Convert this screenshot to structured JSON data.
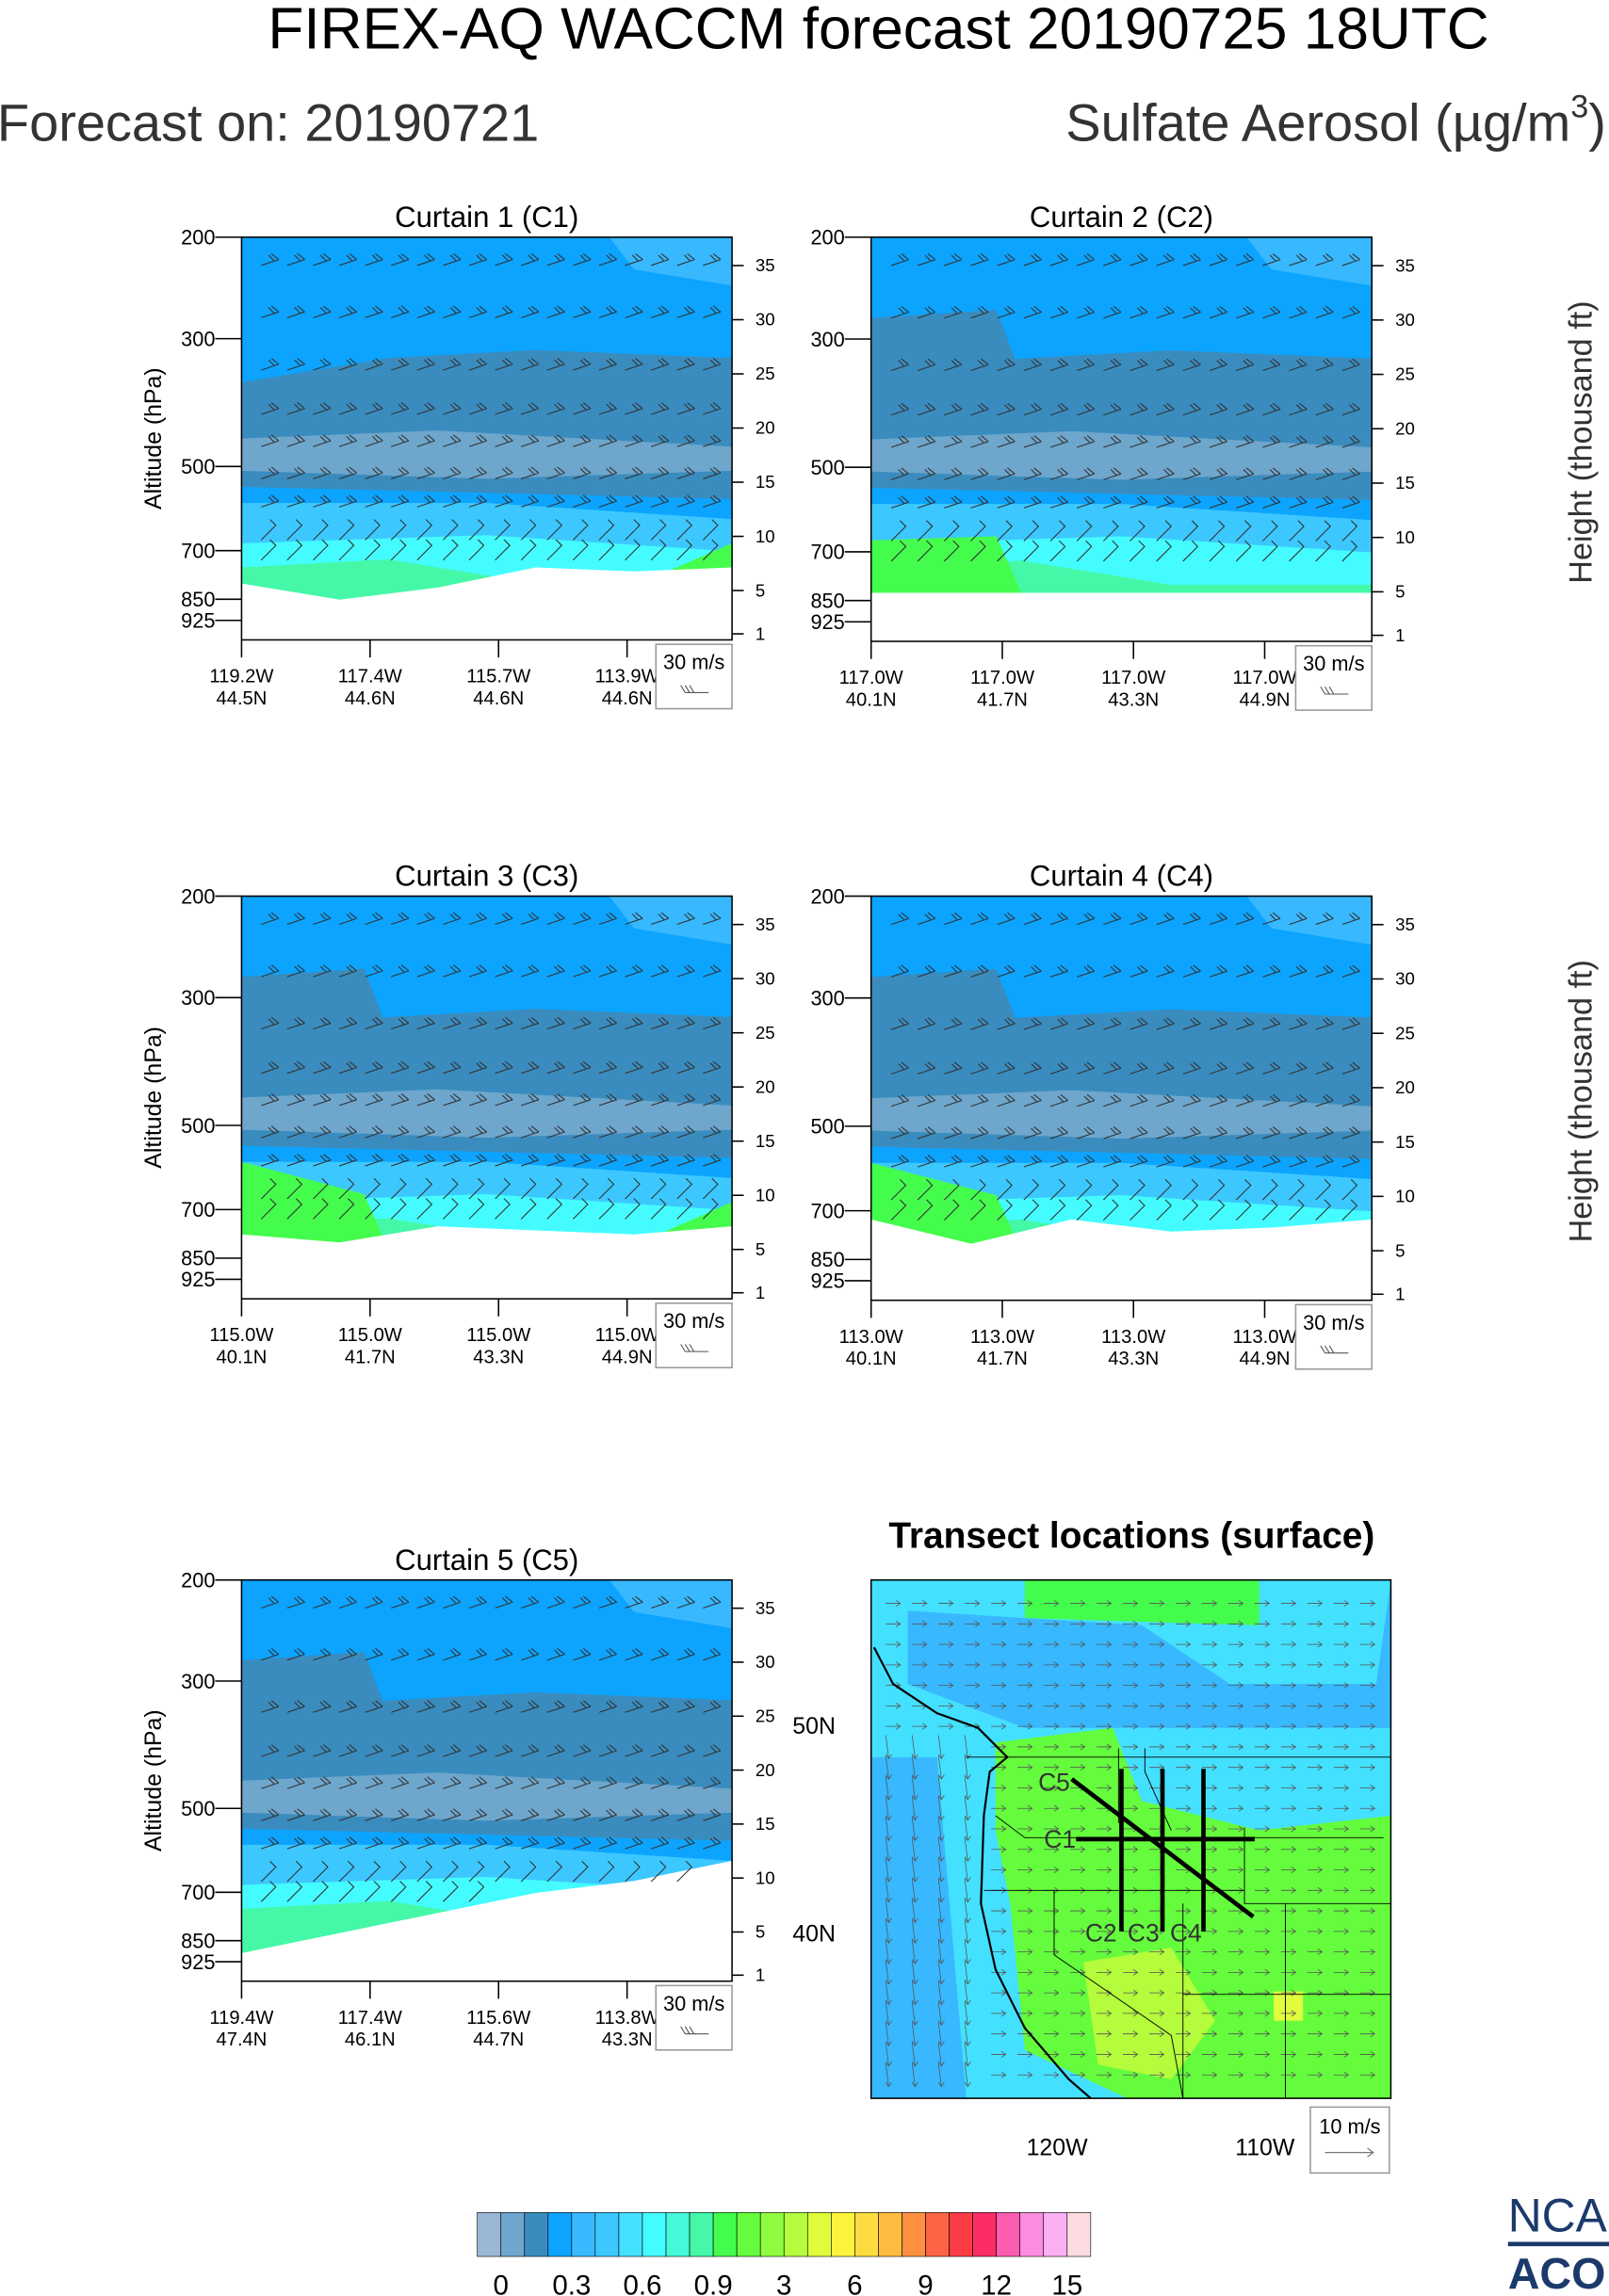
{
  "header": {
    "title": "FIREX-AQ WACCM forecast 20190725 18UTC",
    "forecast_on": "Forecast on: 20190721",
    "variable_main": "Sulfate Aerosol (µg/m",
    "variable_sup": "3",
    "variable_end": ")"
  },
  "chart_data": [
    {
      "type": "heatmap",
      "title": "Curtain 1 (C1)",
      "ylabel": "Altitude (hPa)",
      "ylabel_right": "",
      "yscale": "log",
      "ylim": [
        1000,
        200
      ],
      "yticks": [
        "200",
        "300",
        "500",
        "700",
        "850",
        "925"
      ],
      "yticks_right": [
        "35",
        "30",
        "25",
        "20",
        "15",
        "10",
        "5",
        "1"
      ],
      "xticks": [
        [
          "119.2W",
          "44.5N"
        ],
        [
          "117.4W",
          "44.6N"
        ],
        [
          "115.7W",
          "44.6N"
        ],
        [
          "113.9W",
          "44.6N"
        ]
      ],
      "wind_ref": "30 m/s"
    },
    {
      "type": "heatmap",
      "title": "Curtain 2 (C2)",
      "ylabel": "",
      "ylabel_right": "Height (thousand ft)",
      "yscale": "log",
      "ylim": [
        1000,
        200
      ],
      "yticks": [
        "200",
        "300",
        "500",
        "700",
        "850",
        "925"
      ],
      "yticks_right": [
        "35",
        "30",
        "25",
        "20",
        "15",
        "10",
        "5",
        "1"
      ],
      "xticks": [
        [
          "117.0W",
          "40.1N"
        ],
        [
          "117.0W",
          "41.7N"
        ],
        [
          "117.0W",
          "43.3N"
        ],
        [
          "117.0W",
          "44.9N"
        ]
      ],
      "wind_ref": "30 m/s"
    },
    {
      "type": "heatmap",
      "title": "Curtain 3 (C3)",
      "ylabel": "Altitude (hPa)",
      "ylabel_right": "",
      "yscale": "log",
      "ylim": [
        1000,
        200
      ],
      "yticks": [
        "200",
        "300",
        "500",
        "700",
        "850",
        "925"
      ],
      "yticks_right": [
        "35",
        "30",
        "25",
        "20",
        "15",
        "10",
        "5",
        "1"
      ],
      "xticks": [
        [
          "115.0W",
          "40.1N"
        ],
        [
          "115.0W",
          "41.7N"
        ],
        [
          "115.0W",
          "43.3N"
        ],
        [
          "115.0W",
          "44.9N"
        ]
      ],
      "wind_ref": "30 m/s"
    },
    {
      "type": "heatmap",
      "title": "Curtain 4 (C4)",
      "ylabel": "",
      "ylabel_right": "Height (thousand ft)",
      "yscale": "log",
      "ylim": [
        1000,
        200
      ],
      "yticks": [
        "200",
        "300",
        "500",
        "700",
        "850",
        "925"
      ],
      "yticks_right": [
        "35",
        "30",
        "25",
        "20",
        "15",
        "10",
        "5",
        "1"
      ],
      "xticks": [
        [
          "113.0W",
          "40.1N"
        ],
        [
          "113.0W",
          "41.7N"
        ],
        [
          "113.0W",
          "43.3N"
        ],
        [
          "113.0W",
          "44.9N"
        ]
      ],
      "wind_ref": "30 m/s"
    },
    {
      "type": "heatmap",
      "title": "Curtain 5 (C5)",
      "ylabel": "Altitude (hPa)",
      "ylabel_right": "",
      "yscale": "log",
      "ylim": [
        1000,
        200
      ],
      "yticks": [
        "200",
        "300",
        "500",
        "700",
        "850",
        "925"
      ],
      "yticks_right": [
        "35",
        "30",
        "25",
        "20",
        "15",
        "10",
        "5",
        "1"
      ],
      "xticks": [
        [
          "119.4W",
          "47.4N"
        ],
        [
          "117.4W",
          "46.1N"
        ],
        [
          "115.6W",
          "44.7N"
        ],
        [
          "113.8W",
          "43.3N"
        ]
      ],
      "wind_ref": "30 m/s"
    }
  ],
  "map": {
    "title": "Transect locations (surface)",
    "lat_labels": [
      "50N",
      "40N"
    ],
    "lon_labels": [
      "120W",
      "110W"
    ],
    "transects": [
      "C1",
      "C2",
      "C3",
      "C4",
      "C5"
    ],
    "wind_ref": "10 m/s"
  },
  "colorbar": {
    "labels": [
      "0",
      "0.3",
      "0.6",
      "0.9",
      "3",
      "6",
      "9",
      "12",
      "15"
    ],
    "colors": [
      "#9ab8d6",
      "#6ea6cc",
      "#3a8cbe",
      "#0ca4ff",
      "#38b8ff",
      "#3cc8ff",
      "#44e0ff",
      "#44fcff",
      "#44f8d8",
      "#44f8a8",
      "#44fc4c",
      "#64fc3c",
      "#90fc40",
      "#b4fc3c",
      "#e0fc3c",
      "#fcf43c",
      "#fcdc40",
      "#fcbc40",
      "#fc9040",
      "#fc6444",
      "#fc3c44",
      "#fc2c64",
      "#fc5cb0",
      "#fc8ce0",
      "#fcb0f4",
      "#fcdce0"
    ]
  },
  "logo": {
    "line1": "NCAR",
    "line2": "ACOM",
    "color": "#1b3a6b"
  }
}
